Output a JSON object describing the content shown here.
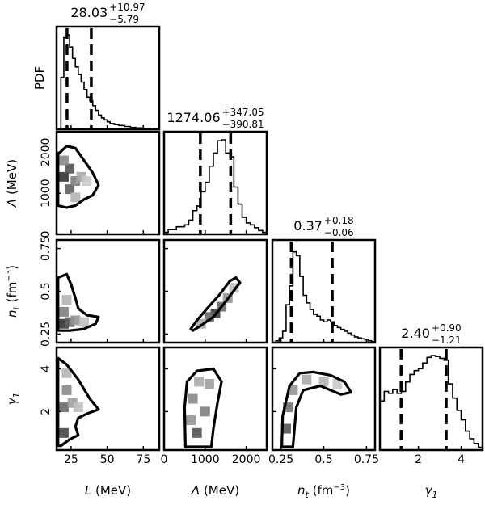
{
  "chart_data": {
    "type": "corner",
    "ylabel_top": "PDF",
    "parameters": [
      {
        "label": "L (MeV)",
        "symbol": "L",
        "unit": " (MeV)",
        "range": [
          15,
          86
        ],
        "ticks": [
          25,
          50,
          75
        ],
        "median": 28.03,
        "plus": 10.97,
        "minus": 5.79,
        "title": "28.03",
        "title_plus": "+10.97",
        "title_minus": "−5.79",
        "quantiles": [
          22.24,
          39.0
        ],
        "hist": {
          "edges": [
            18,
            20,
            22,
            24,
            26,
            28,
            30,
            32,
            34,
            36,
            38,
            40,
            42,
            44,
            46,
            48,
            50,
            52,
            55,
            58,
            62,
            66,
            70,
            75,
            80,
            85
          ],
          "density": [
            0.55,
            0.97,
            1.0,
            0.87,
            0.75,
            0.66,
            0.58,
            0.5,
            0.42,
            0.34,
            0.3,
            0.25,
            0.2,
            0.15,
            0.12,
            0.1,
            0.08,
            0.06,
            0.05,
            0.04,
            0.03,
            0.02,
            0.015,
            0.01,
            0.005
          ]
        }
      },
      {
        "label": "Λ (MeV)",
        "symbol": "Λ",
        "unit": " (MeV)",
        "range": [
          0,
          2500
        ],
        "ticks": [
          0,
          1000,
          2000
        ],
        "median": 1274.06,
        "plus": 347.05,
        "minus": 390.81,
        "title": "1274.06",
        "title_plus": "+347.05",
        "title_minus": "−390.81",
        "quantiles": [
          883.25,
          1621.11
        ],
        "hist": {
          "edges": [
            0,
            100,
            200,
            300,
            400,
            500,
            600,
            700,
            800,
            900,
            1000,
            1100,
            1200,
            1300,
            1400,
            1500,
            1600,
            1700,
            1800,
            1900,
            2000,
            2100,
            2200,
            2300,
            2400,
            2500
          ],
          "density": [
            0.02,
            0.05,
            0.05,
            0.08,
            0.08,
            0.1,
            0.15,
            0.25,
            0.3,
            0.45,
            0.55,
            0.72,
            0.86,
            0.99,
            1.0,
            0.86,
            0.82,
            0.5,
            0.32,
            0.18,
            0.12,
            0.1,
            0.07,
            0.04,
            0.02
          ]
        }
      },
      {
        "label": "n_t (fm⁻³)",
        "symbol": "n",
        "subscript": "t",
        "unit": " (fm",
        "unit_sup": "−3",
        "unit_end": ")",
        "range": [
          0.2,
          0.8
        ],
        "ticks": [
          0.25,
          0.5,
          0.75
        ],
        "median": 0.37,
        "plus": 0.18,
        "minus": 0.06,
        "title": "0.37",
        "title_plus": "+0.18",
        "title_minus": "−0.06",
        "quantiles": [
          0.31,
          0.55
        ],
        "hist": {
          "edges": [
            0.2,
            0.22,
            0.24,
            0.26,
            0.28,
            0.3,
            0.32,
            0.34,
            0.36,
            0.38,
            0.4,
            0.42,
            0.44,
            0.46,
            0.48,
            0.5,
            0.52,
            0.54,
            0.56,
            0.58,
            0.6,
            0.62,
            0.64,
            0.66,
            0.68,
            0.7,
            0.72,
            0.74,
            0.76,
            0.78,
            0.8
          ],
          "density": [
            0.0,
            0.02,
            0.05,
            0.12,
            0.4,
            0.6,
            0.96,
            0.92,
            0.7,
            0.5,
            0.42,
            0.35,
            0.3,
            0.28,
            0.24,
            0.22,
            0.24,
            0.22,
            0.18,
            0.16,
            0.14,
            0.12,
            0.1,
            0.08,
            0.06,
            0.05,
            0.04,
            0.03,
            0.02,
            0.01
          ]
        }
      },
      {
        "label": "γ_1",
        "symbol": "γ",
        "subscript": "1",
        "unit": "",
        "range": [
          0.2,
          5.0
        ],
        "ticks": [
          2,
          4
        ],
        "median": 2.4,
        "plus": 0.9,
        "minus": 1.21,
        "title": "2.40",
        "title_plus": "+0.90",
        "title_minus": "−1.21",
        "quantiles": [
          1.19,
          3.3
        ],
        "hist": {
          "edges": [
            0.2,
            0.4,
            0.6,
            0.8,
            1.0,
            1.2,
            1.4,
            1.6,
            1.8,
            2.0,
            2.2,
            2.4,
            2.6,
            2.8,
            3.0,
            3.2,
            3.4,
            3.6,
            3.8,
            4.0,
            4.2,
            4.4,
            4.6,
            4.8,
            5.0
          ],
          "density": [
            0.52,
            0.62,
            0.6,
            0.64,
            0.6,
            0.62,
            0.72,
            0.8,
            0.84,
            0.86,
            0.92,
            0.98,
            1.0,
            0.99,
            0.97,
            0.95,
            0.7,
            0.55,
            0.42,
            0.32,
            0.2,
            0.12,
            0.07,
            0.03
          ]
        }
      }
    ],
    "contours": [
      {
        "row": 1,
        "col": 0,
        "paths": [
          [
            [
              16,
              1950
            ],
            [
              22,
              2150
            ],
            [
              28,
              2100
            ],
            [
              34,
              1800
            ],
            [
              40,
              1500
            ],
            [
              44,
              1200
            ],
            [
              40,
              950
            ],
            [
              34,
              850
            ],
            [
              28,
              700
            ],
            [
              22,
              650
            ],
            [
              16,
              700
            ]
          ]
        ],
        "density": [
          {
            "x": 20,
            "y": 1400,
            "v": 0.95
          },
          {
            "x": 24,
            "y": 1600,
            "v": 0.8
          },
          {
            "x": 24,
            "y": 1100,
            "v": 0.75
          },
          {
            "x": 28,
            "y": 1300,
            "v": 0.6
          },
          {
            "x": 20,
            "y": 1800,
            "v": 0.55
          },
          {
            "x": 32,
            "y": 1400,
            "v": 0.4
          },
          {
            "x": 28,
            "y": 900,
            "v": 0.35
          },
          {
            "x": 36,
            "y": 1300,
            "v": 0.25
          }
        ]
      },
      {
        "row": 2,
        "col": 0,
        "paths": [
          [
            [
              16,
              0.58
            ],
            [
              22,
              0.6
            ],
            [
              25,
              0.54
            ],
            [
              28,
              0.46
            ],
            [
              30,
              0.4
            ],
            [
              36,
              0.36
            ],
            [
              44,
              0.35
            ],
            [
              42,
              0.31
            ],
            [
              34,
              0.28
            ],
            [
              24,
              0.27
            ],
            [
              16,
              0.27
            ]
          ]
        ],
        "density": [
          {
            "x": 20,
            "y": 0.31,
            "v": 0.95
          },
          {
            "x": 24,
            "y": 0.32,
            "v": 0.75
          },
          {
            "x": 20,
            "y": 0.38,
            "v": 0.6
          },
          {
            "x": 28,
            "y": 0.33,
            "v": 0.5
          },
          {
            "x": 22,
            "y": 0.45,
            "v": 0.35
          },
          {
            "x": 34,
            "y": 0.32,
            "v": 0.3
          }
        ]
      },
      {
        "row": 2,
        "col": 1,
        "paths": [
          [
            [
              700,
              0.27
            ],
            [
              900,
              0.3
            ],
            [
              1200,
              0.35
            ],
            [
              1500,
              0.44
            ],
            [
              1750,
              0.52
            ],
            [
              1850,
              0.55
            ],
            [
              1750,
              0.58
            ],
            [
              1600,
              0.56
            ],
            [
              1350,
              0.48
            ],
            [
              1050,
              0.4
            ],
            [
              800,
              0.33
            ],
            [
              650,
              0.28
            ]
          ]
        ],
        "density": [
          {
            "x": 1250,
            "y": 0.37,
            "v": 0.9
          },
          {
            "x": 1100,
            "y": 0.35,
            "v": 0.7
          },
          {
            "x": 1400,
            "y": 0.41,
            "v": 0.7
          },
          {
            "x": 1550,
            "y": 0.46,
            "v": 0.5
          },
          {
            "x": 900,
            "y": 0.31,
            "v": 0.4
          },
          {
            "x": 1700,
            "y": 0.52,
            "v": 0.3
          }
        ]
      },
      {
        "row": 3,
        "col": 0,
        "paths": [
          [
            [
              16,
              4.5
            ],
            [
              22,
              4.2
            ],
            [
              30,
              3.5
            ],
            [
              38,
              2.6
            ],
            [
              44,
              2.1
            ],
            [
              36,
              1.9
            ],
            [
              30,
              1.7
            ],
            [
              28,
              1.3
            ],
            [
              30,
              0.9
            ],
            [
              24,
              0.7
            ],
            [
              18,
              0.4
            ],
            [
              16,
              0.4
            ]
          ]
        ],
        "density": [
          {
            "x": 20,
            "y": 1.0,
            "v": 0.85
          },
          {
            "x": 20,
            "y": 2.2,
            "v": 0.7
          },
          {
            "x": 22,
            "y": 3.0,
            "v": 0.55
          },
          {
            "x": 26,
            "y": 2.4,
            "v": 0.45
          },
          {
            "x": 22,
            "y": 3.8,
            "v": 0.35
          },
          {
            "x": 30,
            "y": 2.2,
            "v": 0.3
          }
        ]
      },
      {
        "row": 3,
        "col": 1,
        "paths": [
          [
            [
              520,
              0.35
            ],
            [
              500,
              2.2
            ],
            [
              560,
              3.4
            ],
            [
              800,
              3.9
            ],
            [
              1200,
              4.0
            ],
            [
              1400,
              3.4
            ],
            [
              1300,
              2.4
            ],
            [
              1200,
              1.2
            ],
            [
              1150,
              0.35
            ]
          ]
        ],
        "density": [
          {
            "x": 800,
            "y": 1.0,
            "v": 0.8
          },
          {
            "x": 1000,
            "y": 2.0,
            "v": 0.6
          },
          {
            "x": 700,
            "y": 2.6,
            "v": 0.55
          },
          {
            "x": 1100,
            "y": 3.3,
            "v": 0.45
          },
          {
            "x": 850,
            "y": 3.4,
            "v": 0.4
          },
          {
            "x": 650,
            "y": 1.6,
            "v": 0.5
          }
        ]
      },
      {
        "row": 3,
        "col": 2,
        "paths": [
          [
            [
              0.255,
              0.35
            ],
            [
              0.26,
              1.8
            ],
            [
              0.3,
              3.2
            ],
            [
              0.36,
              3.8
            ],
            [
              0.44,
              3.85
            ],
            [
              0.54,
              3.7
            ],
            [
              0.62,
              3.4
            ],
            [
              0.66,
              2.9
            ],
            [
              0.6,
              2.8
            ],
            [
              0.48,
              3.2
            ],
            [
              0.38,
              3.0
            ],
            [
              0.34,
              2.2
            ],
            [
              0.32,
              0.35
            ]
          ]
        ],
        "density": [
          {
            "x": 0.28,
            "y": 1.2,
            "v": 0.8
          },
          {
            "x": 0.29,
            "y": 2.2,
            "v": 0.65
          },
          {
            "x": 0.32,
            "y": 3.0,
            "v": 0.5
          },
          {
            "x": 0.4,
            "y": 3.5,
            "v": 0.4
          },
          {
            "x": 0.5,
            "y": 3.4,
            "v": 0.35
          },
          {
            "x": 0.58,
            "y": 3.3,
            "v": 0.25
          }
        ]
      }
    ]
  }
}
